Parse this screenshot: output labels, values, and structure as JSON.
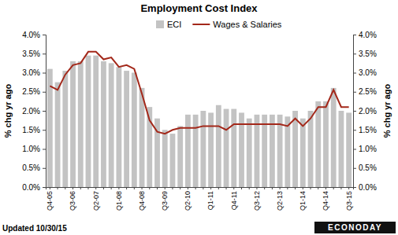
{
  "chart_data": {
    "type": "bar",
    "title": "Employment Cost Index",
    "categories": [
      "Q4-05",
      null,
      null,
      "Q3-06",
      null,
      null,
      "Q2-07",
      null,
      null,
      "Q1-08",
      null,
      null,
      "Q4-08",
      null,
      null,
      "Q3-09",
      null,
      null,
      "Q2-10",
      null,
      null,
      "Q1-11",
      null,
      null,
      "Q4-11",
      null,
      null,
      "Q3-12",
      null,
      null,
      "Q2-13",
      null,
      null,
      "Q1-14",
      null,
      null,
      "Q4-14",
      null,
      null,
      "Q3-15"
    ],
    "series": [
      {
        "name": "ECI",
        "type": "bar",
        "color": "#c3c3c3",
        "values": [
          3.1,
          2.75,
          3.05,
          3.3,
          3.3,
          3.45,
          3.45,
          3.3,
          3.25,
          3.15,
          3.05,
          3.0,
          2.6,
          2.1,
          1.8,
          1.5,
          1.4,
          1.6,
          1.9,
          1.9,
          2.0,
          1.95,
          2.15,
          2.05,
          2.05,
          1.95,
          1.8,
          1.9,
          1.9,
          1.9,
          1.9,
          1.85,
          2.0,
          1.8,
          2.0,
          2.25,
          2.25,
          2.6,
          2.0,
          1.95
        ]
      },
      {
        "name": "Wages & Salaries",
        "type": "line",
        "color": "#a3281a",
        "values": [
          2.65,
          2.55,
          2.95,
          3.2,
          3.25,
          3.55,
          3.55,
          3.35,
          3.4,
          3.15,
          3.2,
          3.1,
          2.45,
          1.75,
          1.45,
          1.4,
          1.5,
          1.55,
          1.55,
          1.55,
          1.6,
          1.6,
          1.6,
          1.5,
          1.65,
          1.65,
          1.65,
          1.65,
          1.65,
          1.65,
          1.65,
          1.6,
          1.8,
          1.6,
          1.8,
          2.1,
          2.1,
          2.55,
          2.1,
          2.1
        ]
      }
    ],
    "y_label": "% chg yr ago",
    "y2_label": "% chg yr ago",
    "ylim": [
      0,
      4
    ],
    "yticks": [
      {
        "value": 0,
        "label": "0.0%"
      },
      {
        "value": 0.5,
        "label": "0.5%"
      },
      {
        "value": 1,
        "label": "1.0%"
      },
      {
        "value": 1.5,
        "label": "1.5%"
      },
      {
        "value": 2,
        "label": "2.0%"
      },
      {
        "value": 2.5,
        "label": "2.5%"
      },
      {
        "value": 3,
        "label": "3.0%"
      },
      {
        "value": 3.5,
        "label": "3.5%"
      },
      {
        "value": 4,
        "label": "4.0%"
      }
    ],
    "y2lim": [
      0,
      4
    ],
    "y2ticks": [
      {
        "value": 0,
        "label": "0.0%"
      },
      {
        "value": 0.5,
        "label": "0.5%"
      },
      {
        "value": 1,
        "label": "1.0%"
      },
      {
        "value": 1.5,
        "label": "1.5%"
      },
      {
        "value": 2,
        "label": "2.0%"
      },
      {
        "value": 2.5,
        "label": "2.5%"
      },
      {
        "value": 3,
        "label": "3.0%"
      },
      {
        "value": 3.5,
        "label": "3.5%"
      },
      {
        "value": 4,
        "label": "4.0%"
      }
    ],
    "grid": false,
    "legend": "top",
    "annotations": [
      "Updated 10/30/15",
      "ECONODAY"
    ]
  }
}
